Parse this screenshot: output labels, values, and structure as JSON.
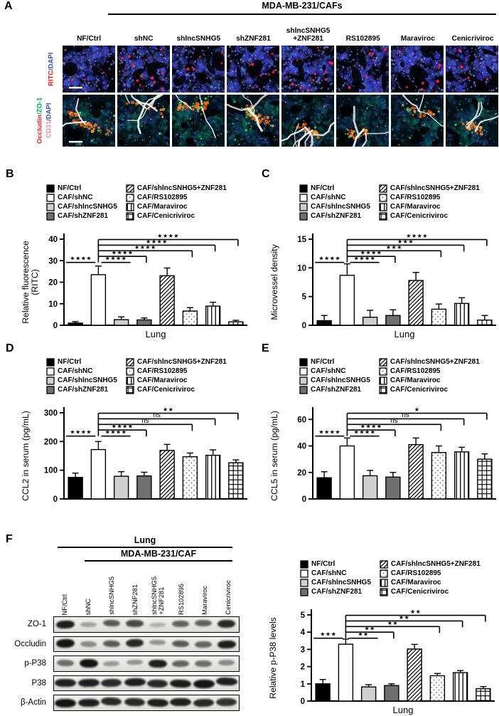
{
  "panels": {
    "A": {
      "letter": "A",
      "group_header": "MDA-MB-231/CAFs",
      "columns": [
        "NF/Ctrl",
        "shNC",
        "shlncSNHG5",
        "shZNF281",
        "shlncSNHG5\n+ZNF281",
        "RS102895",
        "Maraviroc",
        "Cenicriviroc"
      ],
      "row_labels": {
        "row1": [
          {
            "text": "RITC",
            "color": "#ed1c24"
          },
          {
            "text": "/DAPI",
            "color": "#3a53a4"
          }
        ],
        "row2_line1": [
          {
            "text": "Occludin",
            "color": "#ed1c24"
          },
          {
            "text": "/ZO-1",
            "color": "#00a651"
          }
        ],
        "row2_line2": [
          {
            "text": "CD31",
            "color": "#f284b5"
          },
          {
            "text": "/DAPI",
            "color": "#3a53a4"
          }
        ]
      },
      "micrographs": {
        "row1_stain": "RITC red dots on DAPI blue tissue",
        "row1_red_dot_counts": [
          3,
          16,
          5,
          7,
          12,
          6,
          7,
          4
        ],
        "row2_stain": "Occludin orange / ZO-1 green / CD31 white vessels / DAPI blue",
        "row2_features": [
          {
            "orange": 60,
            "green": 25,
            "white": 2
          },
          {
            "orange": 14,
            "green": 10,
            "white": 8
          },
          {
            "orange": 45,
            "green": 30,
            "white": 3
          },
          {
            "orange": 55,
            "green": 30,
            "white": 4
          },
          {
            "orange": 24,
            "green": 12,
            "white": 7
          },
          {
            "orange": 26,
            "green": 15,
            "white": 4
          },
          {
            "orange": 20,
            "green": 18,
            "white": 3
          },
          {
            "orange": 35,
            "green": 25,
            "white": 3
          }
        ],
        "scale_bar": "white bar, first image of each row"
      }
    },
    "B": {
      "letter": "B"
    },
    "C": {
      "letter": "C"
    },
    "D": {
      "letter": "D"
    },
    "E": {
      "letter": "E"
    },
    "F": {
      "letter": "F",
      "blot": {
        "header1": "Lung",
        "header2": "MDA-MB-231/CAF",
        "lane_labels": [
          "NF/Ctrl",
          "shNC",
          "shlncSNHG5",
          "shZNF281",
          "shlncSNHG5\n+ZNF281",
          "RS102895",
          "Maraviroc",
          "Cenicriviroc"
        ],
        "rows": [
          {
            "label": "ZO-1",
            "band_intensities": [
              0.9,
              0.22,
              0.6,
              0.68,
              0.15,
              0.55,
              0.55,
              0.85
            ]
          },
          {
            "label": "Occludin",
            "band_intensities": [
              0.95,
              0.35,
              0.6,
              0.85,
              0.3,
              0.6,
              0.55,
              0.9
            ]
          },
          {
            "label": "p-P38",
            "band_intensities": [
              0.5,
              0.95,
              0.28,
              0.3,
              0.9,
              0.55,
              0.5,
              0.35
            ]
          },
          {
            "label": "P38",
            "band_intensities": [
              0.9,
              0.9,
              0.85,
              0.9,
              0.85,
              0.92,
              0.95,
              0.9
            ]
          },
          {
            "label": "β-Actin",
            "band_intensities": [
              0.95,
              0.9,
              0.85,
              0.85,
              0.9,
              0.9,
              0.85,
              0.8
            ]
          }
        ]
      }
    }
  },
  "legend_items": [
    {
      "label": "NF/Ctrl",
      "pattern": "solid-black"
    },
    {
      "label": "CAF/shNC",
      "pattern": "open-white"
    },
    {
      "label": "CAF/shlncSNHG5",
      "pattern": "light-gray"
    },
    {
      "label": "CAF/shZNF281",
      "pattern": "dark-gray"
    },
    {
      "label": "CAF/shlncSNHG5+ZNF281",
      "pattern": "diagonal-hatch"
    },
    {
      "label": "CAF/RS102895",
      "pattern": "dots"
    },
    {
      "label": "CAF/Maraviroc",
      "pattern": "vertical-lines"
    },
    {
      "label": "CAF/Cenicriviroc",
      "pattern": "grid"
    }
  ],
  "chart_data": [
    {
      "panel": "B",
      "type": "bar",
      "categories": [
        "NF/Ctrl",
        "CAF/shNC",
        "CAF/shlncSNHG5",
        "CAF/shZNF281",
        "CAF/shlncSNHG5+ZNF281",
        "CAF/RS102895",
        "CAF/Maraviroc",
        "CAF/Cenicriviroc"
      ],
      "values": [
        1.0,
        23.5,
        2.6,
        2.5,
        23.0,
        6.6,
        8.9,
        1.6
      ],
      "errors": [
        0.7,
        4.0,
        1.3,
        0.9,
        3.6,
        1.6,
        1.8,
        0.7
      ],
      "ylabel_lines": [
        "Relative  fluorescence",
        "(RITC)"
      ],
      "xlabel": "Lung",
      "ylim": [
        0,
        40
      ],
      "yticks": [
        0,
        10,
        20,
        30,
        40
      ],
      "grid": false,
      "significance": {
        "adjacent_pairs": [
          {
            "bars": [
              "NF/Ctrl",
              "CAF/shNC"
            ],
            "label": "****"
          },
          {
            "bars": [
              "CAF/shNC",
              "CAF/shlncSNHG5"
            ],
            "label": "****"
          }
        ],
        "brackets_from_shNC": [
          {
            "to": "CAF/shZNF281",
            "label": "****"
          },
          {
            "to": "CAF/RS102895",
            "label": "****"
          },
          {
            "to": "CAF/Maraviroc",
            "label": "****"
          },
          {
            "to": "CAF/Cenicriviroc",
            "label": "****"
          }
        ]
      }
    },
    {
      "panel": "C",
      "type": "bar",
      "categories": [
        "NF/Ctrl",
        "CAF/shNC",
        "CAF/shlncSNHG5",
        "CAF/shZNF281",
        "CAF/shlncSNHG5+ZNF281",
        "CAF/RS102895",
        "CAF/Maraviroc",
        "CAF/Cenicriviroc"
      ],
      "values": [
        0.8,
        8.7,
        1.4,
        1.7,
        7.8,
        2.8,
        3.8,
        0.9
      ],
      "errors": [
        0.9,
        2.0,
        1.2,
        1.0,
        1.4,
        0.9,
        1.0,
        0.8
      ],
      "ylabel_lines": [
        "Microvessel density"
      ],
      "xlabel": "Lung",
      "ylim": [
        0,
        15
      ],
      "yticks": [
        0,
        5,
        10,
        15
      ],
      "grid": false,
      "significance": {
        "adjacent_pairs": [
          {
            "bars": [
              "NF/Ctrl",
              "CAF/shNC"
            ],
            "label": "****"
          },
          {
            "bars": [
              "CAF/shNC",
              "CAF/shlncSNHG5"
            ],
            "label": "****"
          }
        ],
        "brackets_from_shNC": [
          {
            "to": "CAF/shZNF281",
            "label": "****"
          },
          {
            "to": "CAF/RS102895",
            "label": "***"
          },
          {
            "to": "CAF/Maraviroc",
            "label": "***"
          },
          {
            "to": "CAF/Cenicriviroc",
            "label": "****"
          }
        ]
      }
    },
    {
      "panel": "D",
      "type": "bar",
      "categories": [
        "NF/Ctrl",
        "CAF/shNC",
        "CAF/shlncSNHG5",
        "CAF/shZNF281",
        "CAF/shlncSNHG5+ZNF281",
        "CAF/RS102895",
        "CAF/Maraviroc",
        "CAF/Cenicriviroc"
      ],
      "values": [
        75,
        172,
        79,
        80,
        169,
        147,
        152,
        126
      ],
      "errors": [
        15,
        28,
        16,
        13,
        21,
        13,
        19,
        10
      ],
      "ylabel_lines": [
        "CCL2 in serum (pg/mL)"
      ],
      "xlabel": "",
      "ylim": [
        0,
        300
      ],
      "yticks": [
        0,
        100,
        200,
        300
      ],
      "grid": false,
      "significance": {
        "adjacent_pairs": [
          {
            "bars": [
              "NF/Ctrl",
              "CAF/shNC"
            ],
            "label": "****"
          },
          {
            "bars": [
              "CAF/shNC",
              "CAF/shlncSNHG5"
            ],
            "label": "****"
          }
        ],
        "brackets_from_shNC": [
          {
            "to": "CAF/shZNF281",
            "label": "****"
          },
          {
            "to": "CAF/RS102895",
            "label": "ns"
          },
          {
            "to": "CAF/Maraviroc",
            "label": "ns"
          },
          {
            "to": "CAF/Cenicriviroc",
            "label": "**"
          }
        ]
      }
    },
    {
      "panel": "E",
      "type": "bar",
      "categories": [
        "NF/Ctrl",
        "CAF/shNC",
        "CAF/shlncSNHG5",
        "CAF/shZNF281",
        "CAF/shlncSNHG5+ZNF281",
        "CAF/RS102895",
        "CAF/Maraviroc",
        "CAF/Cenicriviroc"
      ],
      "values": [
        16,
        40,
        17.5,
        16.5,
        41,
        35,
        35.5,
        30
      ],
      "errors": [
        4.5,
        6,
        4,
        3.5,
        5,
        5,
        3.5,
        4
      ],
      "ylabel_lines": [
        "CCL5 in serum (pg/mL)"
      ],
      "xlabel": "",
      "ylim": [
        0,
        65
      ],
      "yticks": [
        0,
        20,
        40,
        60
      ],
      "grid": false,
      "significance": {
        "adjacent_pairs": [
          {
            "bars": [
              "NF/Ctrl",
              "CAF/shNC"
            ],
            "label": "****"
          },
          {
            "bars": [
              "CAF/shNC",
              "CAF/shlncSNHG5"
            ],
            "label": "****"
          }
        ],
        "brackets_from_shNC": [
          {
            "to": "CAF/shZNF281",
            "label": "****"
          },
          {
            "to": "CAF/RS102895",
            "label": "ns"
          },
          {
            "to": "CAF/Maraviroc",
            "label": "ns"
          },
          {
            "to": "CAF/Cenicriviroc",
            "label": "*"
          }
        ]
      }
    },
    {
      "panel": "F",
      "type": "bar",
      "categories": [
        "NF/Ctrl",
        "CAF/shNC",
        "CAF/shlncSNHG5",
        "CAF/shZNF281",
        "CAF/shlncSNHG5+ZNF281",
        "CAF/RS102895",
        "CAF/Maraviroc",
        "CAF/Cenicriviroc"
      ],
      "values": [
        1.0,
        3.3,
        0.82,
        0.9,
        3.02,
        1.47,
        1.65,
        0.72
      ],
      "errors": [
        0.25,
        0.3,
        0.13,
        0.1,
        0.27,
        0.13,
        0.12,
        0.12
      ],
      "ylabel_lines": [
        "Relative p-P38 levels"
      ],
      "xlabel": "Lung",
      "ylim": [
        0,
        5
      ],
      "yticks": [
        0,
        1,
        2,
        3,
        4,
        5
      ],
      "grid": false,
      "significance": {
        "adjacent_pairs": [
          {
            "bars": [
              "NF/Ctrl",
              "CAF/shNC"
            ],
            "label": "***"
          },
          {
            "bars": [
              "CAF/shNC",
              "CAF/shlncSNHG5"
            ],
            "label": "**"
          }
        ],
        "brackets_from_shNC": [
          {
            "to": "CAF/shZNF281",
            "label": "**"
          },
          {
            "to": "CAF/RS102895",
            "label": "**"
          },
          {
            "to": "CAF/Maraviroc",
            "label": "**"
          },
          {
            "to": "CAF/Cenicriviroc",
            "label": "**"
          }
        ]
      }
    }
  ],
  "colors": {
    "ritc_red": "#ed1c24",
    "dapi_blue": "#3a53a4",
    "zo1_green": "#00a651",
    "cd31_pink": "#f284b5",
    "axis_black": "#000000"
  }
}
